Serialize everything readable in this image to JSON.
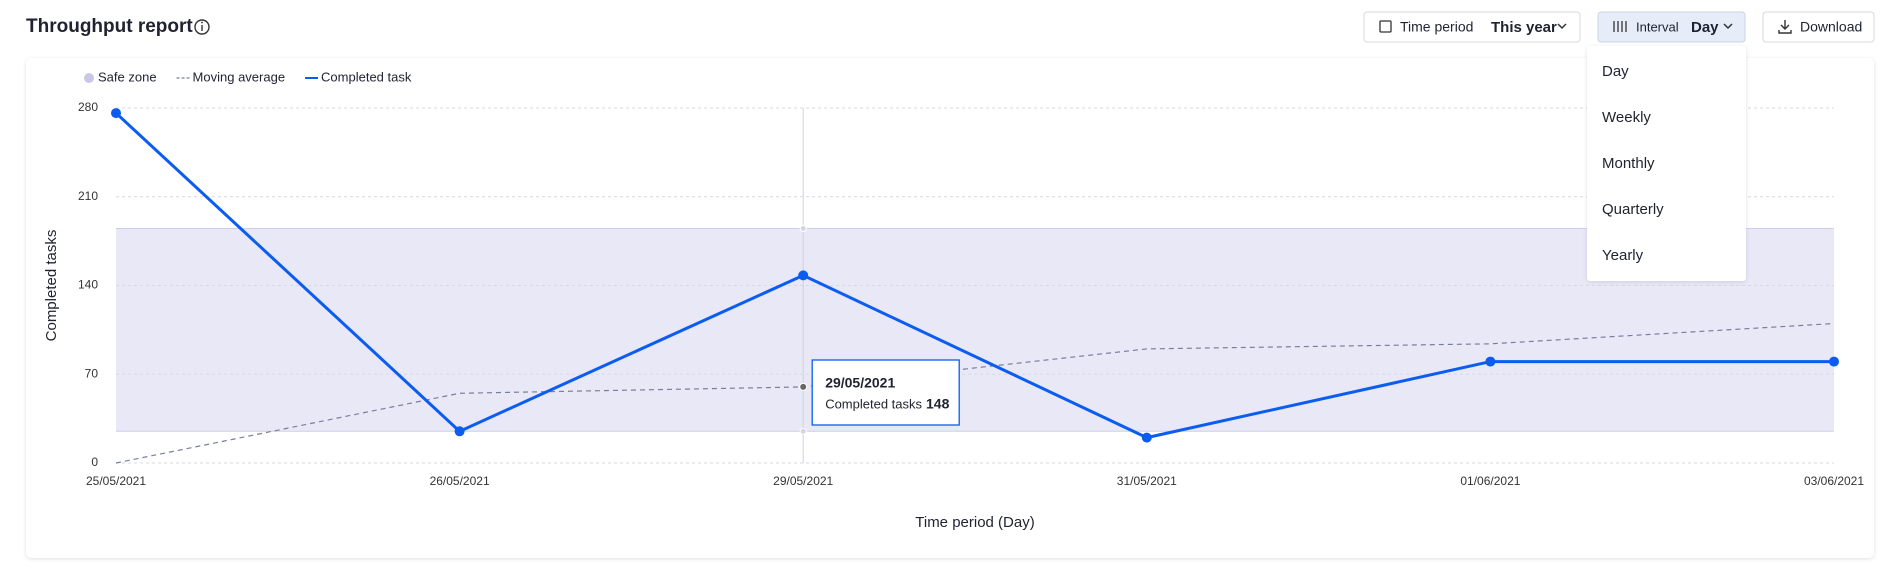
{
  "header": {
    "title": "Throughput report",
    "time_period_label": "Time period",
    "time_period_value": "This year",
    "interval_label": "Interval",
    "interval_value": "Day",
    "download": "Download"
  },
  "dropdown": {
    "items": [
      "Day",
      "Weekly",
      "Monthly",
      "Quarterly",
      "Yearly"
    ]
  },
  "chart_data": {
    "type": "line",
    "x_label": "Time period (Day)",
    "y_label": "Completed tasks",
    "categories": [
      "25/05/2021",
      "26/05/2021",
      "29/05/2021",
      "31/05/2021",
      "01/06/2021",
      "03/06/2021"
    ],
    "series": [
      {
        "name": "Completed task",
        "color": "#0b5cf0",
        "style": "solid",
        "values": [
          276,
          25,
          148,
          20,
          80,
          80
        ]
      },
      {
        "name": "Moving average",
        "color": "#7a7f99",
        "style": "dashed",
        "values": [
          0,
          55,
          60,
          90,
          94,
          110
        ]
      }
    ],
    "safe_zone": {
      "name": "Safe zone",
      "range": [
        25,
        185
      ],
      "color": "#e9e8f7"
    },
    "ylim": [
      0,
      280
    ],
    "yticks": [
      0,
      70,
      140,
      210,
      280
    ],
    "grid": true,
    "tooltip": {
      "index": 2,
      "label": "Completed tasks"
    }
  }
}
